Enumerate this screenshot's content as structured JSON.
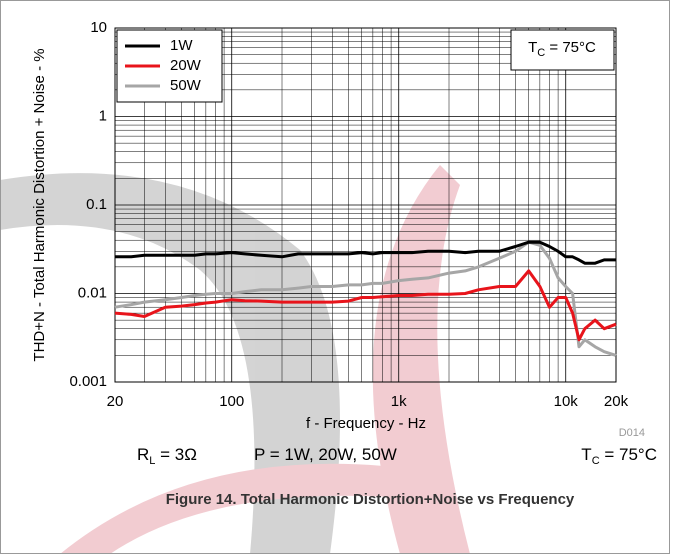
{
  "chart_data": {
    "type": "line",
    "ylabel": "THD+N - Total Harmonic Distortion + Noise - %",
    "xlabel": "f - Frequency - Hz",
    "figure_id": "D014",
    "xscale": "log",
    "yscale": "log",
    "grid": true,
    "legend": "upper left",
    "xlim": [
      20,
      20000
    ],
    "ylim": [
      0.001,
      10
    ],
    "xticks": [
      20,
      100,
      {
        "value": 1000,
        "label": "1k"
      },
      {
        "value": 10000,
        "label": "10k"
      },
      {
        "value": 20000,
        "label": "20k"
      }
    ],
    "yticks": [
      0.001,
      0.01,
      0.1,
      1,
      10
    ],
    "x": [
      20,
      25,
      30,
      40,
      50,
      60,
      70,
      80,
      100,
      120,
      150,
      200,
      250,
      300,
      400,
      500,
      600,
      700,
      800,
      1000,
      1200,
      1500,
      2000,
      2500,
      3000,
      4000,
      5000,
      6000,
      7000,
      8000,
      9000,
      10000,
      11000,
      12000,
      13000,
      15000,
      17000,
      20000
    ],
    "series": [
      {
        "name": "1W",
        "color": "#000000",
        "values": [
          0.026,
          0.026,
          0.027,
          0.027,
          0.027,
          0.027,
          0.028,
          0.028,
          0.029,
          0.028,
          0.027,
          0.026,
          0.028,
          0.028,
          0.028,
          0.028,
          0.029,
          0.028,
          0.029,
          0.029,
          0.029,
          0.03,
          0.03,
          0.029,
          0.03,
          0.03,
          0.034,
          0.038,
          0.038,
          0.034,
          0.03,
          0.026,
          0.026,
          0.024,
          0.022,
          0.022,
          0.024,
          0.024
        ]
      },
      {
        "name": "20W",
        "color": "#e8141b",
        "values": [
          0.006,
          0.0058,
          0.0055,
          0.007,
          0.0072,
          0.0075,
          0.0078,
          0.008,
          0.0085,
          0.0083,
          0.0082,
          0.008,
          0.008,
          0.008,
          0.008,
          0.0082,
          0.009,
          0.009,
          0.0092,
          0.0095,
          0.0095,
          0.0098,
          0.0098,
          0.01,
          0.011,
          0.012,
          0.012,
          0.018,
          0.012,
          0.007,
          0.009,
          0.009,
          0.006,
          0.003,
          0.004,
          0.005,
          0.004,
          0.0045
        ]
      },
      {
        "name": "50W",
        "color": "#a6a6a6",
        "values": [
          0.007,
          0.0075,
          0.008,
          0.0085,
          0.009,
          0.0095,
          0.0098,
          0.01,
          0.01,
          0.0105,
          0.011,
          0.011,
          0.0115,
          0.012,
          0.012,
          0.0125,
          0.0125,
          0.013,
          0.013,
          0.014,
          0.0145,
          0.015,
          0.017,
          0.018,
          0.02,
          0.025,
          0.03,
          0.038,
          0.035,
          0.025,
          0.015,
          0.012,
          0.01,
          0.0025,
          0.003,
          0.0025,
          0.0022,
          0.002
        ]
      }
    ],
    "annotation": {
      "main": "T",
      "sub": "C",
      "rest": " = 75°C"
    },
    "conditions": [
      {
        "main": "R",
        "sub": "L",
        "rest": " = 3Ω"
      },
      {
        "main": "P = 1W, 20W, 50W",
        "sub": "",
        "rest": ""
      },
      {
        "main": "T",
        "sub": "C",
        "rest": " = 75°C"
      }
    ],
    "caption": "Figure 14. Total Harmonic Distortion+Noise vs Frequency"
  }
}
